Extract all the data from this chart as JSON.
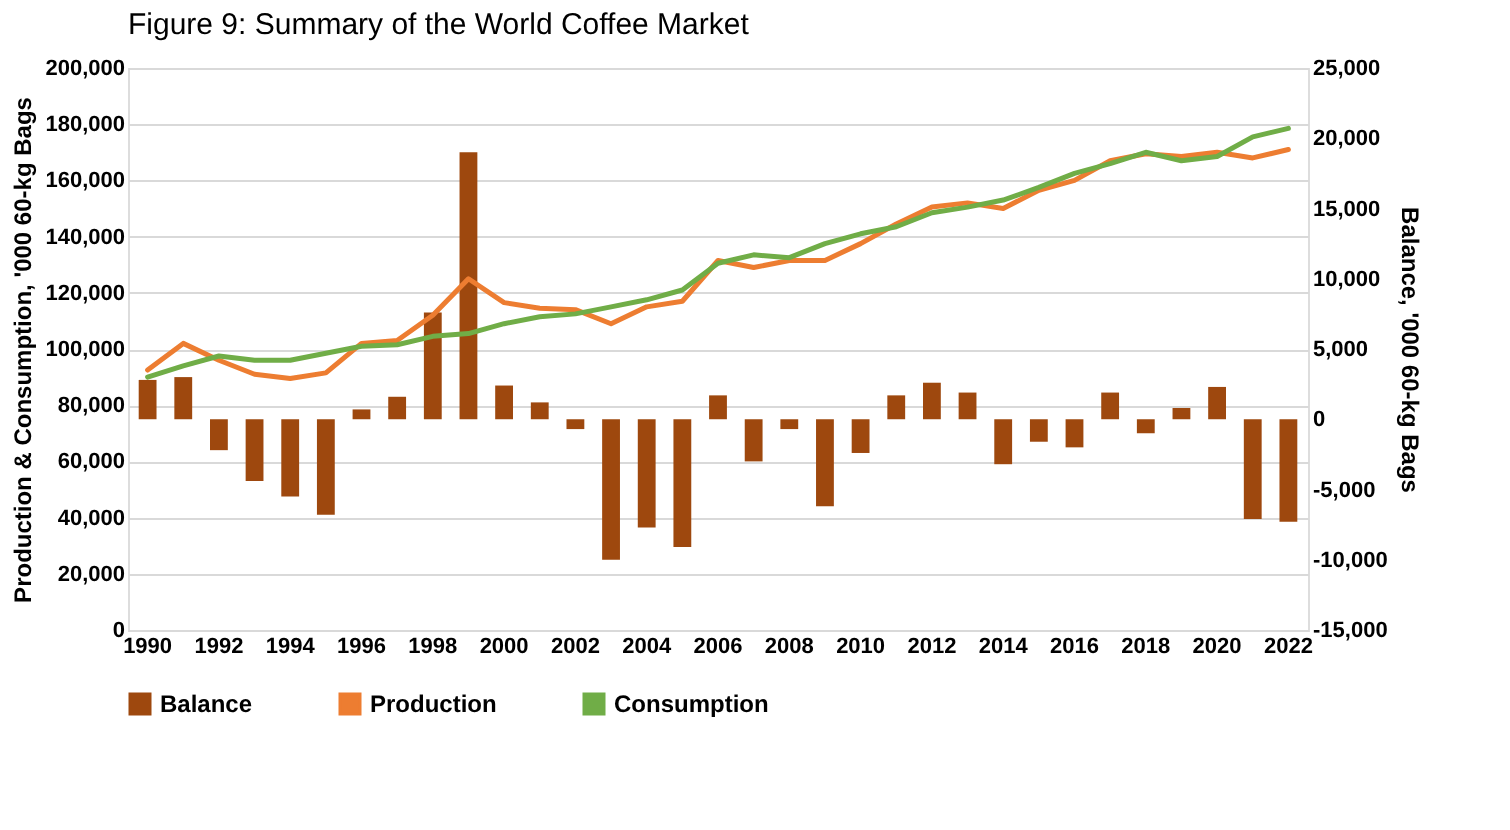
{
  "chart_data": {
    "type": "bar",
    "title": "Figure 9: Summary of the World Coffee Market",
    "ylabel": "Production & Consumption, '000 60-kg Bags",
    "y2label": "Balance, '000 60-kg Bags",
    "categories": [
      "1990",
      null,
      "1992",
      null,
      "1994",
      null,
      "1996",
      null,
      "1998",
      null,
      "2000",
      null,
      "2002",
      null,
      "2004",
      null,
      "2006",
      null,
      "2008",
      null,
      "2010",
      null,
      "2012",
      null,
      "2014",
      null,
      "2016",
      null,
      "2018",
      null,
      "2020",
      null,
      "2022"
    ],
    "series": [
      {
        "name": "Balance",
        "axis": "y2",
        "color": "#9e480e",
        "values": [
          2800,
          3000,
          -2200,
          -4400,
          -5500,
          -6800,
          700,
          1600,
          7600,
          19000,
          2400,
          1200,
          -700,
          -10000,
          -7700,
          -9100,
          1700,
          -3000,
          -700,
          -6200,
          -2400,
          1700,
          2600,
          1900,
          -3200,
          -1600,
          -2000,
          1900,
          -1000,
          800,
          2300,
          -7100,
          -7300
        ]
      },
      {
        "name": "Production",
        "type": "line",
        "color": "#ed7d31",
        "values": [
          92500,
          102000,
          96000,
          91000,
          89500,
          91500,
          102000,
          103000,
          112000,
          125000,
          116500,
          114500,
          114000,
          109000,
          115000,
          117000,
          131500,
          129000,
          131500,
          131500,
          137500,
          144500,
          150500,
          152000,
          150000,
          156500,
          160000,
          167000,
          169500,
          168500,
          170000,
          168000,
          171000
        ]
      },
      {
        "name": "Consumption",
        "type": "line",
        "color": "#70ad47",
        "values": [
          90000,
          94000,
          97500,
          96000,
          96000,
          98500,
          101000,
          101500,
          104500,
          105500,
          109000,
          111500,
          112500,
          115000,
          117500,
          121000,
          130500,
          133500,
          132500,
          137500,
          141000,
          143500,
          148500,
          150500,
          153000,
          157500,
          162500,
          166000,
          170000,
          167000,
          168500,
          175500,
          178500
        ]
      }
    ],
    "ylim": [
      0,
      200000
    ],
    "yticks": [
      0,
      {
        "value": 20000,
        "label": "20,000"
      },
      {
        "value": 40000,
        "label": "40,000"
      },
      {
        "value": 60000,
        "label": "60,000"
      },
      {
        "value": 80000,
        "label": "80,000"
      },
      {
        "value": 100000,
        "label": "100,000"
      },
      {
        "value": 120000,
        "label": "120,000"
      },
      {
        "value": 140000,
        "label": "140,000"
      },
      {
        "value": 160000,
        "label": "160,000"
      },
      {
        "value": 180000,
        "label": "180,000"
      },
      {
        "value": 200000,
        "label": "200,000"
      }
    ],
    "y2lim": [
      -15000,
      25000
    ],
    "y2ticks": [
      {
        "value": -15000,
        "label": "-15,000"
      },
      {
        "value": -10000,
        "label": "-10,000"
      },
      {
        "value": -5000,
        "label": "-5,000"
      },
      0,
      {
        "value": 5000,
        "label": "5,000"
      },
      {
        "value": 10000,
        "label": "10,000"
      },
      {
        "value": 15000,
        "label": "15,000"
      },
      {
        "value": 20000,
        "label": "20,000"
      },
      {
        "value": 25000,
        "label": "25,000"
      }
    ],
    "grid": "y",
    "legend": "bottom",
    "marker": "none",
    "line_style": "solid"
  }
}
